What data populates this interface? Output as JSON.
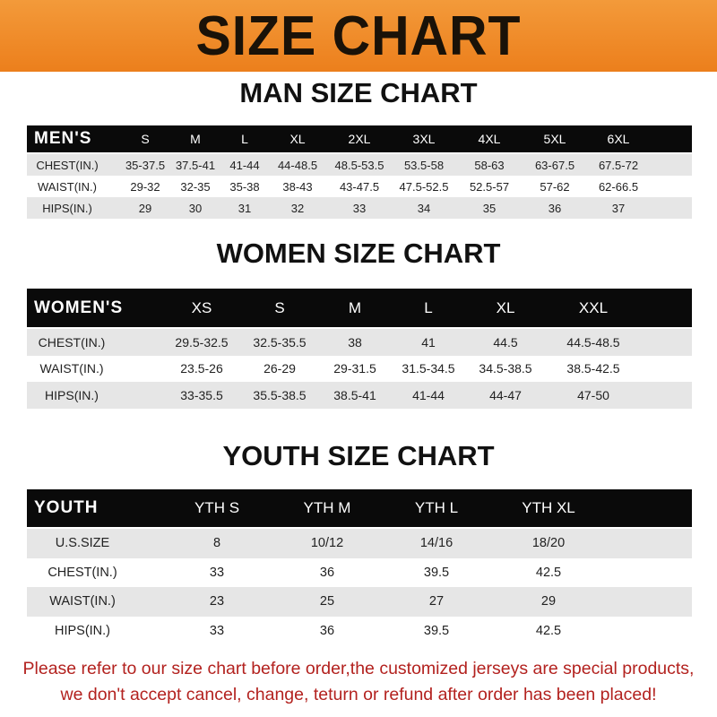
{
  "banner_title": "SIZE CHART",
  "men": {
    "title": "MAN SIZE CHART",
    "header": [
      "MEN'S",
      "S",
      "M",
      "L",
      "XL",
      "2XL",
      "3XL",
      "4XL",
      "5XL",
      "6XL"
    ],
    "rows": [
      [
        "CHEST(IN.)",
        "35-37.5",
        "37.5-41",
        "41-44",
        "44-48.5",
        "48.5-53.5",
        "53.5-58",
        "58-63",
        "63-67.5",
        "67.5-72"
      ],
      [
        "WAIST(IN.)",
        "29-32",
        "32-35",
        "35-38",
        "38-43",
        "43-47.5",
        "47.5-52.5",
        "52.5-57",
        "57-62",
        "62-66.5"
      ],
      [
        "HIPS(IN.)",
        "29",
        "30",
        "31",
        "32",
        "33",
        "34",
        "35",
        "36",
        "37"
      ]
    ]
  },
  "women": {
    "title": "WOMEN SIZE CHART",
    "header": [
      "WOMEN'S",
      "XS",
      "S",
      "M",
      "L",
      "XL",
      "XXL"
    ],
    "rows": [
      [
        "CHEST(IN.)",
        "29.5-32.5",
        "32.5-35.5",
        "38",
        "41",
        "44.5",
        "44.5-48.5"
      ],
      [
        "WAIST(IN.)",
        "23.5-26",
        "26-29",
        "29-31.5",
        "31.5-34.5",
        "34.5-38.5",
        "38.5-42.5"
      ],
      [
        "HIPS(IN.)",
        "33-35.5",
        "35.5-38.5",
        "38.5-41",
        "41-44",
        "44-47",
        "47-50"
      ]
    ]
  },
  "youth": {
    "title": "YOUTH SIZE CHART",
    "header": [
      "YOUTH",
      "YTH S",
      "YTH M",
      "YTH L",
      "YTH XL"
    ],
    "rows": [
      [
        "U.S.SIZE",
        "8",
        "10/12",
        "14/16",
        "18/20"
      ],
      [
        "CHEST(IN.)",
        "33",
        "36",
        "39.5",
        "42.5"
      ],
      [
        "WAIST(IN.)",
        "23",
        "25",
        "27",
        "29"
      ],
      [
        "HIPS(IN.)",
        "33",
        "36",
        "39.5",
        "42.5"
      ]
    ]
  },
  "notice": {
    "line1": "Please refer to our size chart before order,the customized jerseys are special products,",
    "line2": "we don't accept cancel, change, teturn or refund after order has been placed!"
  },
  "colors": {
    "banner": "#ec7f1c",
    "header_row": "#0a0a0a",
    "stripe": "#e6e6e6",
    "notice": "#b3221f"
  }
}
